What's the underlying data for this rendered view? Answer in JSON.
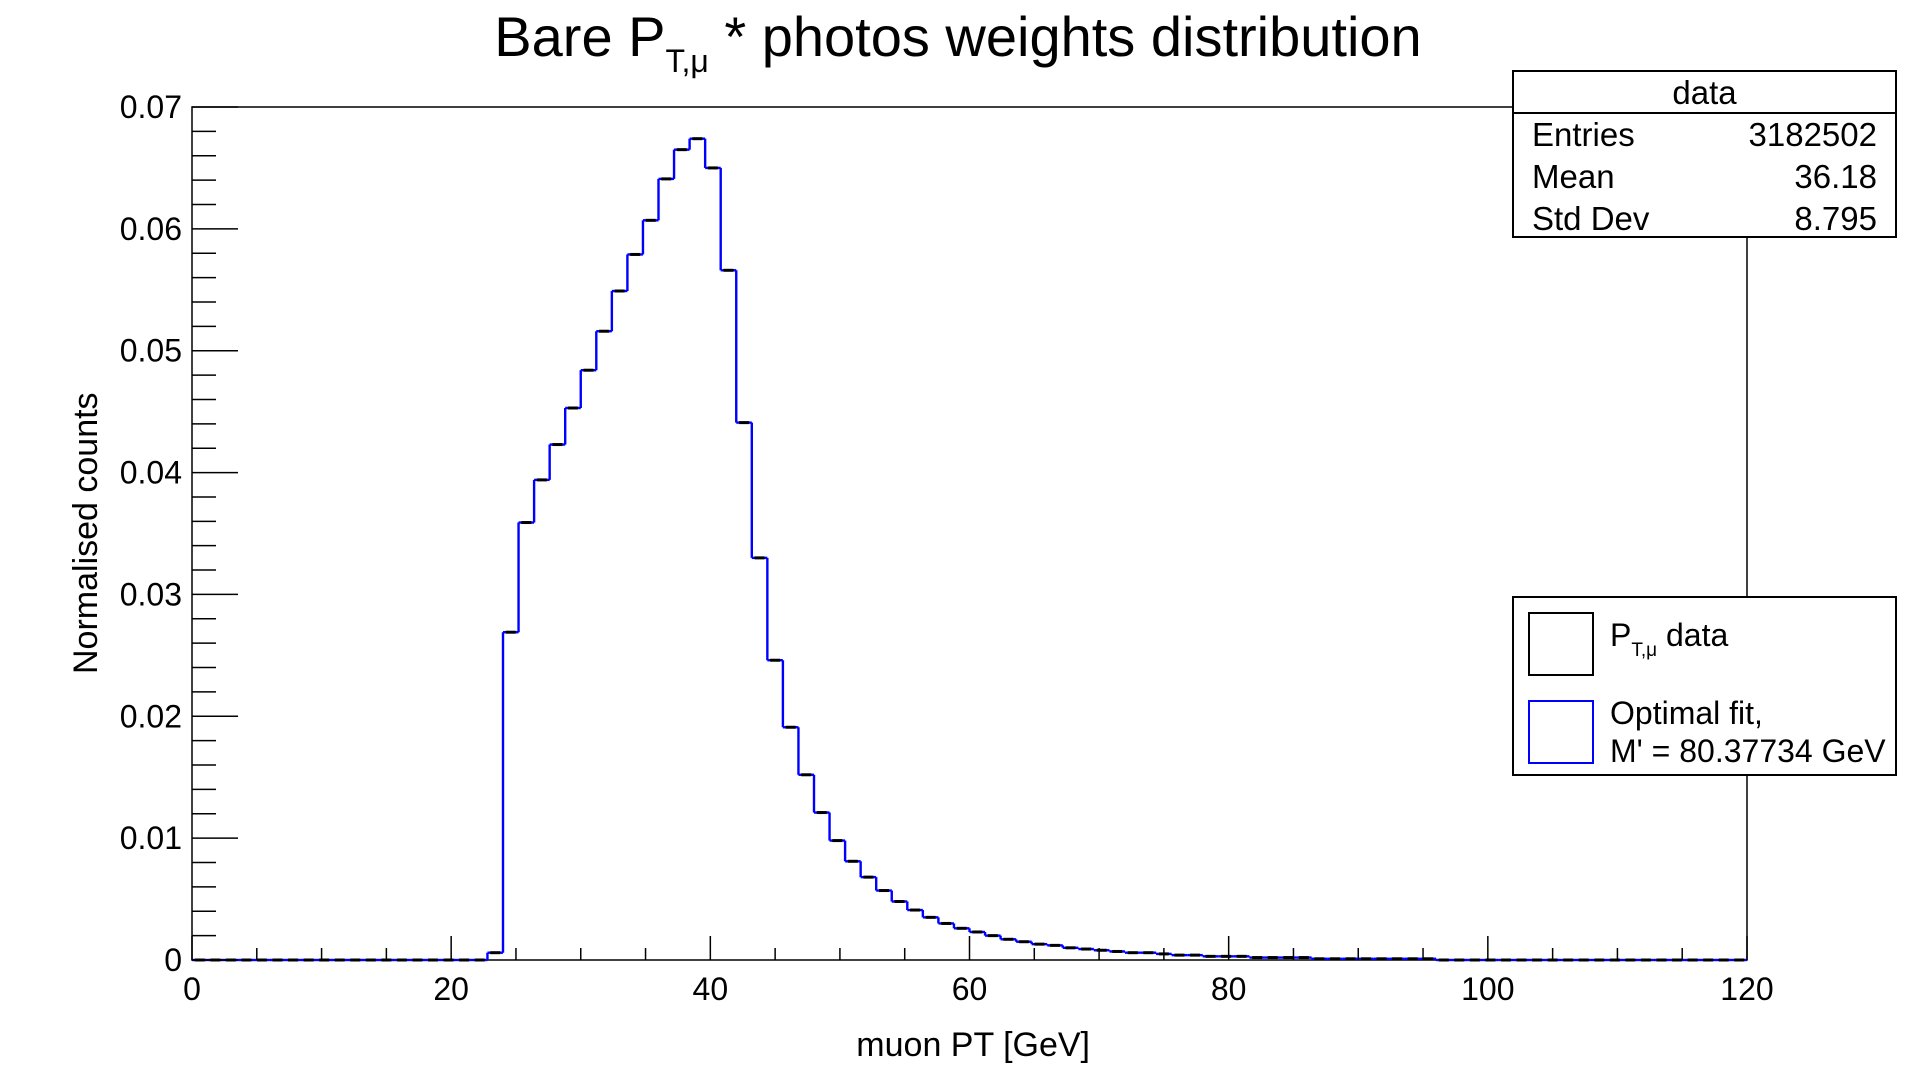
{
  "chart_data": {
    "type": "bar",
    "title": "Bare P",
    "title_subscript": "T,μ",
    "title_rest": " * photos weights distribution",
    "xlabel": "muon PT [GeV]",
    "ylabel": "Normalised counts",
    "xlim": [
      0,
      120
    ],
    "ylim": [
      0,
      0.07
    ],
    "x_ticks": [
      "0",
      "20",
      "40",
      "60",
      "80",
      "100",
      "120"
    ],
    "y_ticks": [
      "0",
      "0.01",
      "0.02",
      "0.03",
      "0.04",
      "0.05",
      "0.06",
      "0.07"
    ],
    "bin_width": 1.2,
    "values": [
      0,
      0,
      0,
      0,
      0,
      0,
      0,
      0,
      0,
      0,
      0,
      0,
      0,
      0,
      0,
      0,
      0,
      0,
      0,
      0.0006,
      0.0269,
      0.0359,
      0.0394,
      0.0423,
      0.0453,
      0.0484,
      0.0516,
      0.0549,
      0.0579,
      0.0607,
      0.0641,
      0.0665,
      0.0674,
      0.065,
      0.0566,
      0.0441,
      0.033,
      0.0246,
      0.0191,
      0.0152,
      0.0121,
      0.0098,
      0.0081,
      0.0068,
      0.0057,
      0.0048,
      0.0041,
      0.0035,
      0.003,
      0.0026,
      0.0023,
      0.002,
      0.0017,
      0.0015,
      0.0013,
      0.0012,
      0.001,
      0.0009,
      0.0008,
      0.0007,
      0.0006,
      0.0006,
      0.0005,
      0.0004,
      0.0004,
      0.0003,
      0.0003,
      0.0003,
      0.0002,
      0.0002,
      0.0002,
      0.0002,
      0.0001,
      0.0001,
      0.0001,
      0.0001,
      0.0001,
      0.0001,
      0.0001,
      0.0001,
      0,
      0,
      0,
      0,
      0,
      0,
      0,
      0,
      0,
      0,
      0,
      0,
      0,
      0,
      0,
      0,
      0,
      0,
      0,
      0
    ],
    "line_color": "#0000ff",
    "marker_color": "#000000",
    "grid": false,
    "legend_position": "right"
  },
  "stats": {
    "header": "data",
    "entries_label": "Entries",
    "entries_value": "3182502",
    "mean_label": "Mean",
    "mean_value": "36.18",
    "std_label": "Std Dev",
    "std_value": "8.795"
  },
  "legend": {
    "data_label": "P",
    "data_label_sub": "T,μ",
    "data_label_rest": " data",
    "fit_label_line1": "Optimal fit,",
    "fit_label_line2": "M' = 80.37734 GeV",
    "data_color": "#000000",
    "fit_color": "#0000ff"
  }
}
